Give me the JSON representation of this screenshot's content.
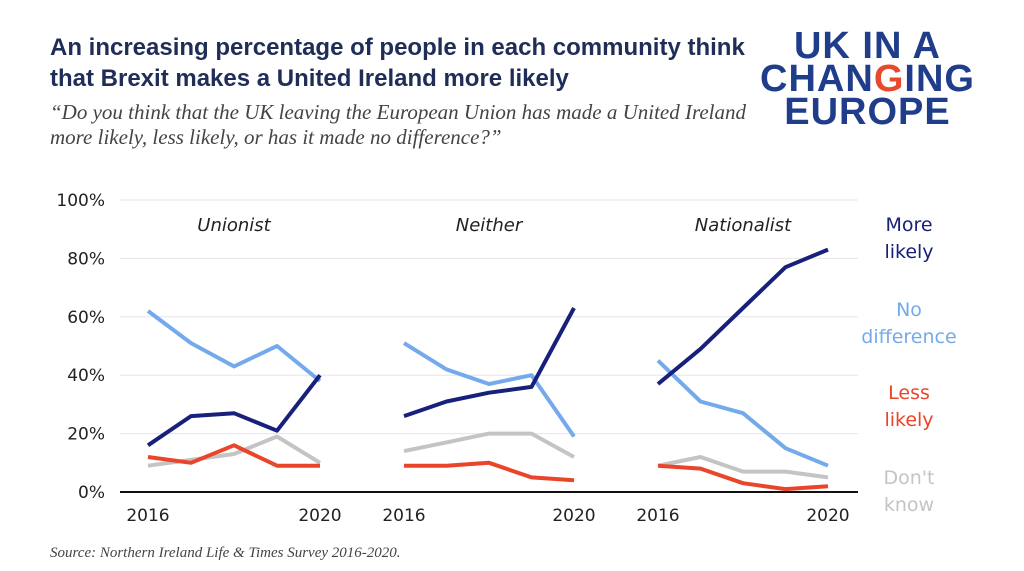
{
  "title": "An increasing percentage of people in each community think that Brexit makes a United Ireland more likely",
  "subtitle": "“Do you think that the UK leaving the European Union has made a United Ireland more likely, less likely, or has it made no difference?”",
  "source": "Source: Northern Ireland Life & Times Survey 2016-2020.",
  "logo": {
    "line1": "UK IN A",
    "line2a": "CHAN",
    "line2b": "G",
    "line2c": "ING",
    "line3": "EUROPE"
  },
  "colors": {
    "more": "#17207a",
    "nodiff": "#74aaeb",
    "less": "#e9452a",
    "dontknow": "#c4c4c4"
  },
  "legend": [
    {
      "key": "more",
      "line1": "More",
      "line2": "likely",
      "color": "#17207a"
    },
    {
      "key": "nodiff",
      "line1": "No",
      "line2": "difference",
      "color": "#74aaeb"
    },
    {
      "key": "less",
      "line1": "Less",
      "line2": "likely",
      "color": "#e9452a"
    },
    {
      "key": "dontknow",
      "line1": "Don't",
      "line2": "know",
      "color": "#c4c4c4"
    }
  ],
  "chart_data": {
    "type": "line",
    "ylim": [
      0,
      100
    ],
    "y_ticks": [
      "0%",
      "20%",
      "40%",
      "60%",
      "80%",
      "100%"
    ],
    "x": [
      2016,
      2017,
      2018,
      2019,
      2020
    ],
    "grid": true,
    "panels": [
      {
        "title": "Unionist",
        "x_tick_labels": [
          "2016",
          "2020"
        ],
        "series": [
          {
            "key": "more",
            "values": [
              16,
              26,
              27,
              21,
              40
            ]
          },
          {
            "key": "nodiff",
            "values": [
              62,
              51,
              43,
              50,
              38
            ]
          },
          {
            "key": "less",
            "values": [
              12,
              10,
              16,
              9,
              9
            ]
          },
          {
            "key": "dontknow",
            "values": [
              9,
              11,
              13,
              19,
              10
            ]
          }
        ]
      },
      {
        "title": "Neither",
        "x_tick_labels": [
          "2016",
          "2020"
        ],
        "series": [
          {
            "key": "more",
            "values": [
              26,
              31,
              34,
              36,
              63
            ]
          },
          {
            "key": "nodiff",
            "values": [
              51,
              42,
              37,
              40,
              19
            ]
          },
          {
            "key": "less",
            "values": [
              9,
              9,
              10,
              5,
              4
            ]
          },
          {
            "key": "dontknow",
            "values": [
              14,
              17,
              20,
              20,
              12
            ]
          }
        ]
      },
      {
        "title": "Nationalist",
        "x_tick_labels": [
          "2016",
          "2020"
        ],
        "series": [
          {
            "key": "more",
            "values": [
              37,
              49,
              63,
              77,
              83
            ]
          },
          {
            "key": "nodiff",
            "values": [
              45,
              31,
              27,
              15,
              9
            ]
          },
          {
            "key": "less",
            "values": [
              9,
              8,
              3,
              1,
              2
            ]
          },
          {
            "key": "dontknow",
            "values": [
              9,
              12,
              7,
              7,
              5
            ]
          }
        ]
      }
    ]
  }
}
